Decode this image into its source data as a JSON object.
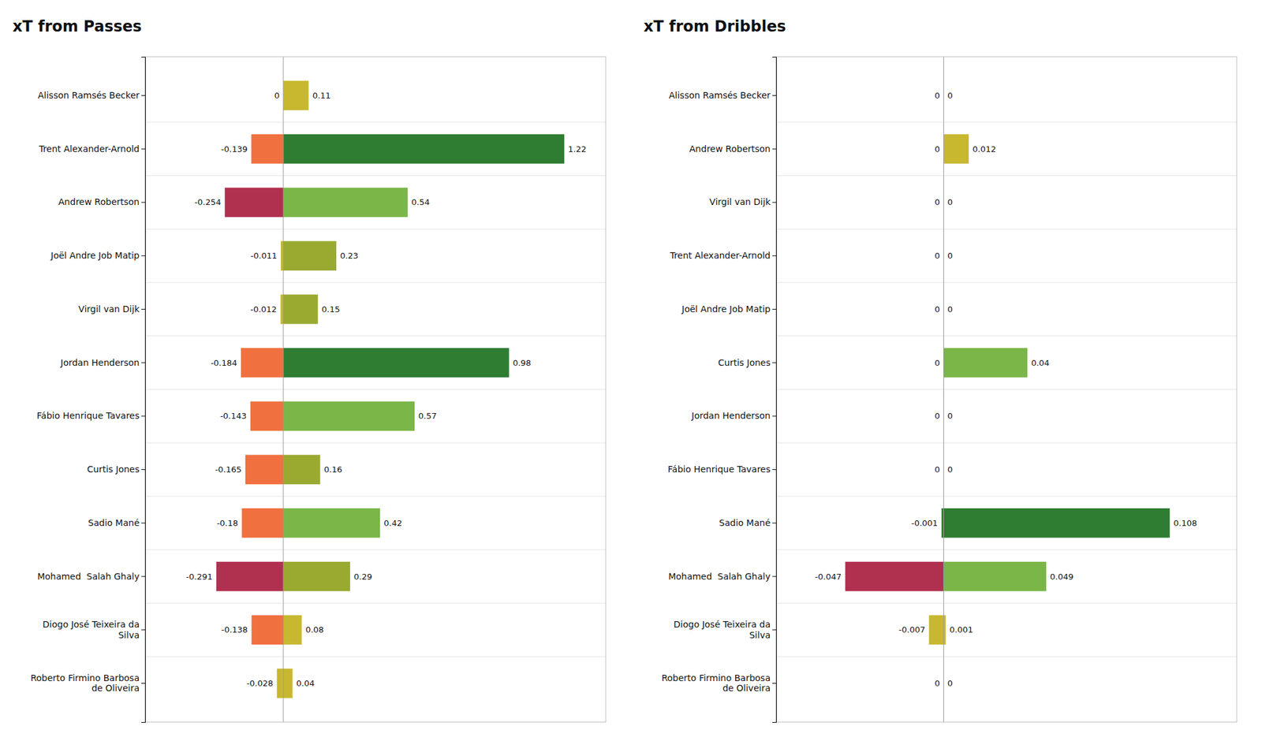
{
  "chart_data": [
    {
      "type": "bar",
      "orientation": "horizontal",
      "title": "xT from Passes",
      "categories": [
        "Alisson Ramsés Becker",
        "Trent Alexander-Arnold",
        "Andrew Robertson",
        "Joël Andre Job Matip",
        "Virgil van Dijk",
        "Jordan Henderson",
        "Fábio Henrique Tavares",
        "Curtis Jones",
        "Sadio Mané",
        "Mohamed  Salah Ghaly",
        "Diogo José Teixeira da\nSilva",
        "Roberto Firmino Barbosa\nde Oliveira"
      ],
      "series": [
        {
          "values": [
            0,
            -0.139,
            -0.254,
            -0.011,
            -0.012,
            -0.184,
            -0.143,
            -0.165,
            -0.18,
            -0.291,
            -0.138,
            -0.028
          ],
          "colors": [
            "#ffffff",
            "#f07040",
            "#b03050",
            "#c8b830",
            "#c8b830",
            "#f07040",
            "#f07040",
            "#f07040",
            "#f07040",
            "#b03050",
            "#f07040",
            "#c8b830"
          ]
        },
        {
          "values": [
            0.11,
            1.22,
            0.54,
            0.23,
            0.15,
            0.98,
            0.57,
            0.16,
            0.42,
            0.29,
            0.08,
            0.04
          ],
          "colors": [
            "#c8b830",
            "#2e7d32",
            "#7ab648",
            "#9aaa30",
            "#9aaa30",
            "#2e7d32",
            "#7ab648",
            "#9aaa30",
            "#7ab648",
            "#9aaa30",
            "#c8b830",
            "#c8b830"
          ]
        }
      ],
      "xlim": [
        -0.6,
        1.4
      ],
      "data_labels": true,
      "tick_labels": "y",
      "grid": false
    },
    {
      "type": "bar",
      "orientation": "horizontal",
      "title": "xT from Dribbles",
      "categories": [
        "Alisson Ramsés Becker",
        "Andrew Robertson",
        "Virgil van Dijk",
        "Trent Alexander-Arnold",
        "Joël Andre Job Matip",
        "Curtis Jones",
        "Jordan Henderson",
        "Fábio Henrique Tavares",
        "Sadio Mané",
        "Mohamed  Salah Ghaly",
        "Diogo José Teixeira da\nSilva",
        "Roberto Firmino Barbosa\nde Oliveira"
      ],
      "series": [
        {
          "values": [
            0,
            0,
            0,
            0,
            0,
            0,
            0,
            0,
            -0.001,
            -0.047,
            -0.007,
            0
          ],
          "colors": [
            "#ffffff",
            "#ffffff",
            "#ffffff",
            "#ffffff",
            "#ffffff",
            "#ffffff",
            "#ffffff",
            "#ffffff",
            "#2e7d32",
            "#b03050",
            "#c8b830",
            "#ffffff"
          ]
        },
        {
          "values": [
            0,
            0.012,
            0,
            0,
            0,
            0.04,
            0,
            0,
            0.108,
            0.049,
            0.001,
            0
          ],
          "colors": [
            "#ffffff",
            "#c8b830",
            "#ffffff",
            "#ffffff",
            "#ffffff",
            "#7ab648",
            "#ffffff",
            "#ffffff",
            "#2e7d32",
            "#7ab648",
            "#c8b830",
            "#ffffff"
          ]
        }
      ],
      "xlim": [
        -0.08,
        0.14
      ],
      "data_labels": true,
      "tick_labels": "y",
      "grid": false
    }
  ]
}
